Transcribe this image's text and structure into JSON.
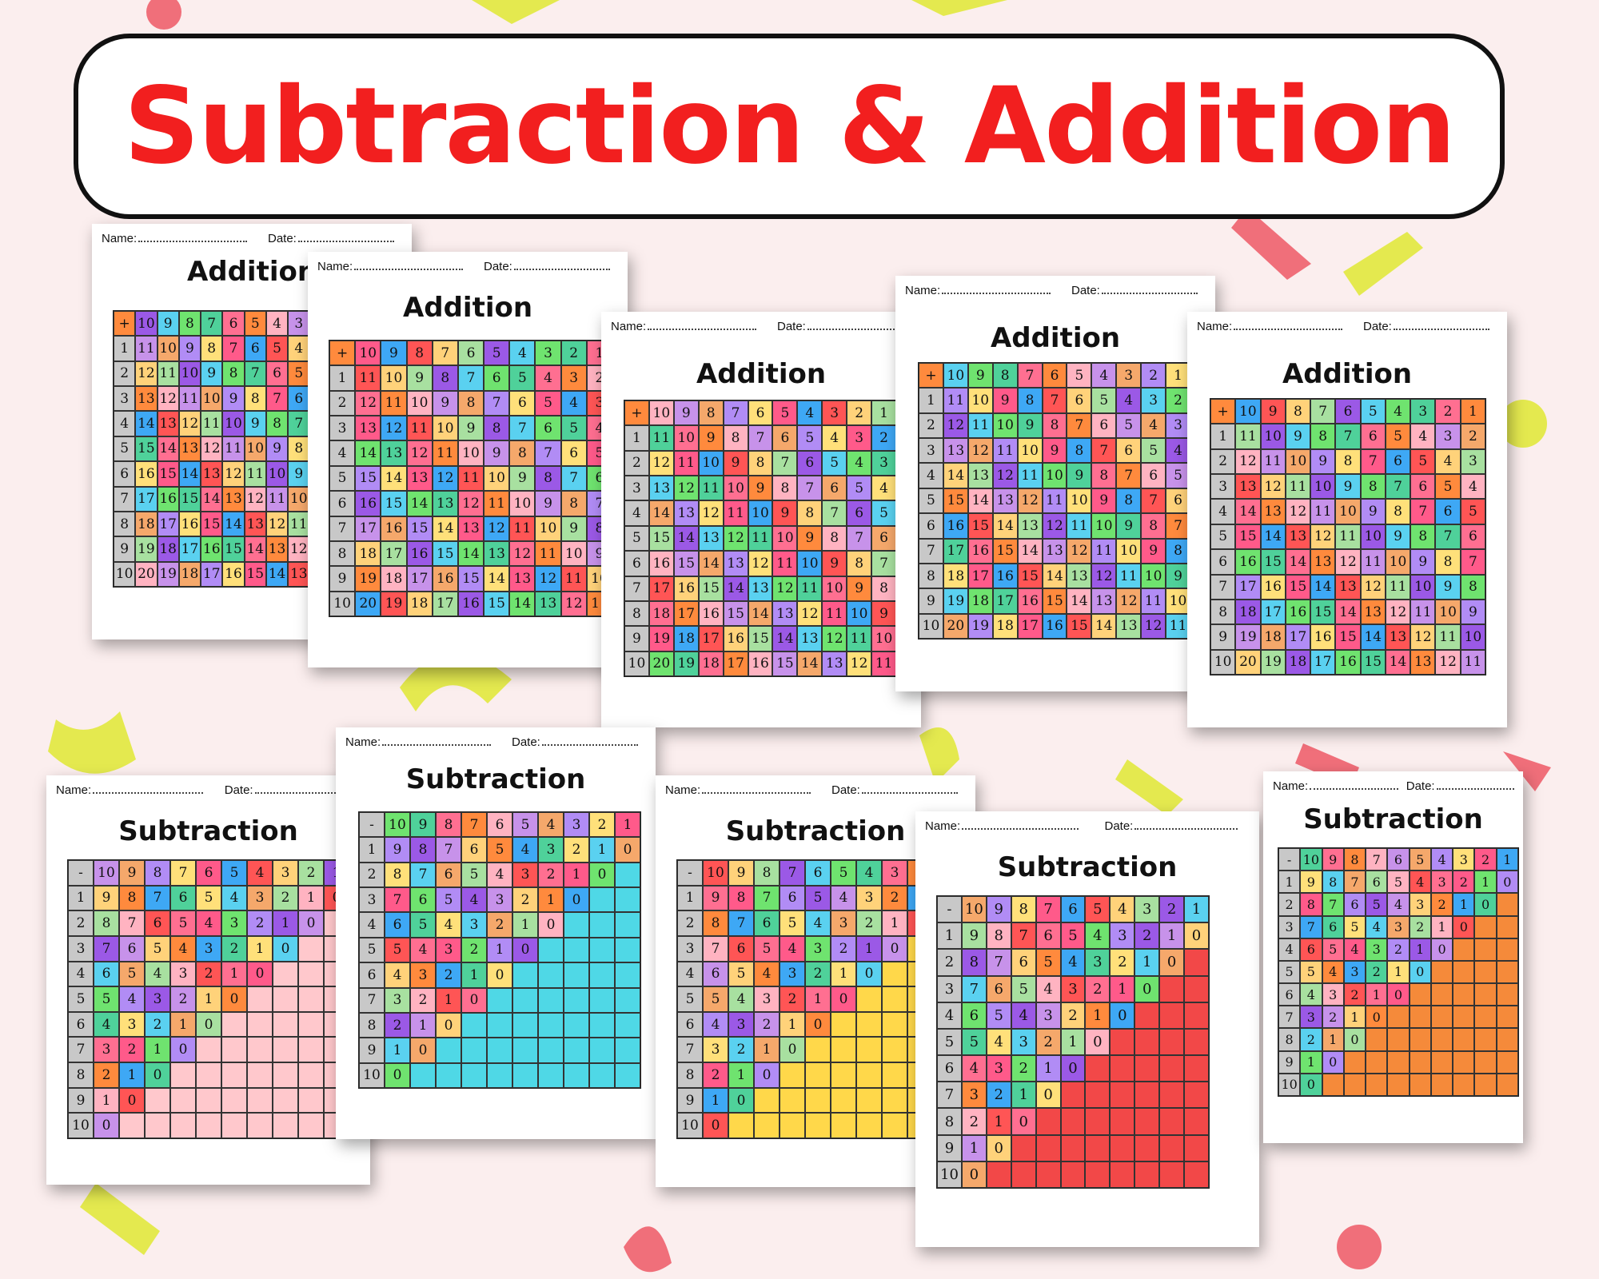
{
  "banner": {
    "title": "Subtraction & Addition"
  },
  "colors": {
    "title_red": "#f21f1f",
    "background": "#fbeeee"
  },
  "palette": [
    "#a8e0a0",
    "#ffe07a",
    "#ff8a3d",
    "#9b59e6",
    "#ff5a8a",
    "#ffb3c1",
    "#5ad1f0",
    "#3ea8f5",
    "#c792ea",
    "#6fe36f",
    "#ff5555",
    "#f5a86b",
    "#4fd19a",
    "#ffd27a",
    "#b18cf5",
    "#ff6f91"
  ],
  "sheets": [
    {
      "id": "add1",
      "type": "addition",
      "title": "Addition",
      "op": "+",
      "name_label": "Name:",
      "date_label": "Date:"
    },
    {
      "id": "add2",
      "type": "addition",
      "title": "Addition",
      "op": "+",
      "name_label": "Name:",
      "date_label": "Date:"
    },
    {
      "id": "add3",
      "type": "addition",
      "title": "Addition",
      "op": "+",
      "name_label": "Name:",
      "date_label": "Date:"
    },
    {
      "id": "add4",
      "type": "addition",
      "title": "Addition",
      "op": "+",
      "name_label": "Name:",
      "date_label": "Date:"
    },
    {
      "id": "add5",
      "type": "addition",
      "title": "Addition",
      "op": "+",
      "name_label": "Name:",
      "date_label": "Date:"
    },
    {
      "id": "sub1",
      "type": "subtraction",
      "title": "Subtraction",
      "op": "-",
      "fill": "#ffc8cc",
      "name_label": "Name:",
      "date_label": "Date:"
    },
    {
      "id": "sub2",
      "type": "subtraction",
      "title": "Subtraction",
      "op": "-",
      "fill": "#4fd8e6",
      "name_label": "Name:",
      "date_label": "Date:"
    },
    {
      "id": "sub3",
      "type": "subtraction",
      "title": "Subtraction",
      "op": "-",
      "fill": "#ffd84a",
      "name_label": "Name:",
      "date_label": "Date:"
    },
    {
      "id": "sub4",
      "type": "subtraction",
      "title": "Subtraction",
      "op": "-",
      "fill": "#f24848",
      "name_label": "Name:",
      "date_label": "Date:"
    },
    {
      "id": "sub5",
      "type": "subtraction",
      "title": "Subtraction",
      "op": "-",
      "fill": "#f58a3a",
      "name_label": "Name:",
      "date_label": "Date:"
    }
  ]
}
